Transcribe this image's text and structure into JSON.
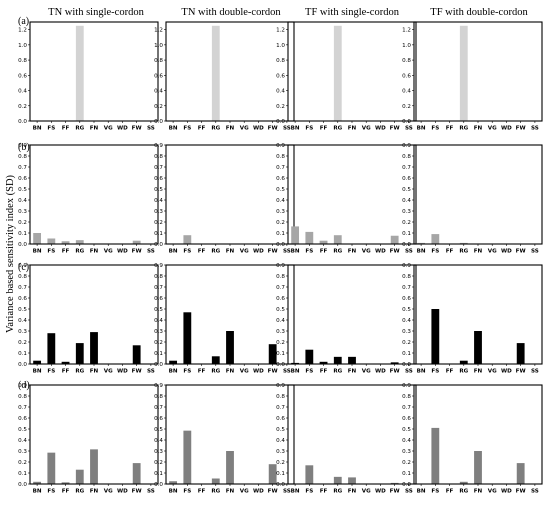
{
  "figure": {
    "ylabel": "Variance based sensitivity index (SD)",
    "columns": [
      "TN with single-cordon",
      "TN with double-cordon",
      "TF with single-cordon",
      "TF with double-cordon"
    ],
    "rows": [
      "(a)",
      "(b)",
      "(c)",
      "(d)"
    ],
    "row_colors": [
      "#d3d3d3",
      "#a6a6a6",
      "#000000",
      "#7f7f7f"
    ]
  },
  "chart_data": [
    {
      "type": "bar",
      "title": "TN with single-cordon",
      "panel": "(a)",
      "categories": [
        "BN",
        "FS",
        "FF",
        "RG",
        "FN",
        "VG",
        "WD",
        "FW",
        "SS"
      ],
      "values": [
        0,
        0,
        0,
        1.25,
        0,
        0,
        0,
        0,
        0
      ],
      "ylim": [
        0,
        1.3
      ],
      "yticks": [
        0.0,
        0.2,
        0.4,
        0.6,
        0.8,
        1.0,
        1.2
      ]
    },
    {
      "type": "bar",
      "title": "TN with double-cordon",
      "panel": "(a)",
      "categories": [
        "BN",
        "FS",
        "FF",
        "RG",
        "FN",
        "VG",
        "WD",
        "FW",
        "SS"
      ],
      "values": [
        0,
        0,
        0,
        1.25,
        0,
        0,
        0,
        0,
        0
      ],
      "ylim": [
        0,
        1.3
      ],
      "yticks": [
        0.0,
        0.2,
        0.4,
        0.6,
        0.8,
        1.0,
        1.2
      ]
    },
    {
      "type": "bar",
      "title": "TF with single-cordon",
      "panel": "(a)",
      "categories": [
        "BN",
        "FS",
        "FF",
        "RG",
        "FN",
        "VG",
        "WD",
        "FW",
        "SS"
      ],
      "values": [
        0,
        0,
        0,
        1.25,
        0,
        0,
        0,
        0,
        0
      ],
      "ylim": [
        0,
        1.3
      ],
      "yticks": [
        0.0,
        0.2,
        0.4,
        0.6,
        0.8,
        1.0,
        1.2
      ]
    },
    {
      "type": "bar",
      "title": "TF with double-cordon",
      "panel": "(a)",
      "categories": [
        "BN",
        "FS",
        "FF",
        "RG",
        "FN",
        "VG",
        "WD",
        "FW",
        "SS"
      ],
      "values": [
        0,
        0,
        0,
        1.25,
        0,
        0,
        0,
        0,
        0
      ],
      "ylim": [
        0,
        1.3
      ],
      "yticks": [
        0.0,
        0.2,
        0.4,
        0.6,
        0.8,
        1.0,
        1.2
      ]
    },
    {
      "type": "bar",
      "panel": "(b)",
      "categories": [
        "BN",
        "FS",
        "FF",
        "RG",
        "FN",
        "VG",
        "WD",
        "FW",
        "SS"
      ],
      "values": [
        0.1,
        0.05,
        0.025,
        0.035,
        0,
        0,
        0,
        0.03,
        0
      ],
      "ylim": [
        0,
        0.9
      ],
      "yticks": [
        0.0,
        0.1,
        0.2,
        0.3,
        0.4,
        0.5,
        0.6,
        0.7,
        0.8,
        0.9
      ]
    },
    {
      "type": "bar",
      "panel": "(b)",
      "categories": [
        "BN",
        "FS",
        "FF",
        "RG",
        "FN",
        "VG",
        "WD",
        "FW",
        "SS"
      ],
      "values": [
        0,
        0.08,
        0,
        0,
        0,
        0,
        0,
        0,
        0
      ],
      "ylim": [
        0,
        0.9
      ],
      "yticks": [
        0.0,
        0.1,
        0.2,
        0.3,
        0.4,
        0.5,
        0.6,
        0.7,
        0.8,
        0.9
      ]
    },
    {
      "type": "bar",
      "panel": "(b)",
      "categories": [
        "BN",
        "FS",
        "FF",
        "RG",
        "FN",
        "VG",
        "WD",
        "FW",
        "SS"
      ],
      "values": [
        0.16,
        0.11,
        0.03,
        0.08,
        0,
        0,
        0,
        0.075,
        0
      ],
      "ylim": [
        0,
        0.9
      ],
      "yticks": [
        0.0,
        0.1,
        0.2,
        0.3,
        0.4,
        0.5,
        0.6,
        0.7,
        0.8,
        0.9
      ]
    },
    {
      "type": "bar",
      "panel": "(b)",
      "categories": [
        "BN",
        "FS",
        "FF",
        "RG",
        "FN",
        "VG",
        "WD",
        "FW",
        "SS"
      ],
      "values": [
        0.01,
        0.09,
        0,
        0.01,
        0,
        0,
        0,
        0,
        0
      ],
      "ylim": [
        0,
        0.9
      ],
      "yticks": [
        0.0,
        0.1,
        0.2,
        0.3,
        0.4,
        0.5,
        0.6,
        0.7,
        0.8,
        0.9
      ]
    },
    {
      "type": "bar",
      "panel": "(c)",
      "categories": [
        "BN",
        "FS",
        "FF",
        "RG",
        "FN",
        "VG",
        "WD",
        "FW",
        "SS"
      ],
      "values": [
        0.03,
        0.28,
        0.02,
        0.19,
        0.29,
        0,
        0,
        0.17,
        0
      ],
      "ylim": [
        0,
        0.9
      ],
      "yticks": [
        0.0,
        0.1,
        0.2,
        0.3,
        0.4,
        0.5,
        0.6,
        0.7,
        0.8,
        0.9
      ]
    },
    {
      "type": "bar",
      "panel": "(c)",
      "categories": [
        "BN",
        "FS",
        "FF",
        "RG",
        "FN",
        "VG",
        "WD",
        "FW",
        "SS"
      ],
      "values": [
        0.03,
        0.47,
        0,
        0.07,
        0.3,
        0,
        0,
        0.18,
        0
      ],
      "ylim": [
        0,
        0.9
      ],
      "yticks": [
        0.0,
        0.1,
        0.2,
        0.3,
        0.4,
        0.5,
        0.6,
        0.7,
        0.8,
        0.9
      ]
    },
    {
      "type": "bar",
      "panel": "(c)",
      "categories": [
        "BN",
        "FS",
        "FF",
        "RG",
        "FN",
        "VG",
        "WD",
        "FW",
        "SS"
      ],
      "values": [
        0.01,
        0.13,
        0.02,
        0.065,
        0.065,
        0,
        0,
        0.015,
        0
      ],
      "ylim": [
        0,
        0.9
      ],
      "yticks": [
        0.0,
        0.1,
        0.2,
        0.3,
        0.4,
        0.5,
        0.6,
        0.7,
        0.8,
        0.9
      ]
    },
    {
      "type": "bar",
      "panel": "(c)",
      "categories": [
        "BN",
        "FS",
        "FF",
        "RG",
        "FN",
        "VG",
        "WD",
        "FW",
        "SS"
      ],
      "values": [
        0,
        0.5,
        0,
        0.03,
        0.3,
        0,
        0,
        0.19,
        0
      ],
      "ylim": [
        0,
        0.9
      ],
      "yticks": [
        0.0,
        0.1,
        0.2,
        0.3,
        0.4,
        0.5,
        0.6,
        0.7,
        0.8,
        0.9
      ]
    },
    {
      "type": "bar",
      "panel": "(d)",
      "categories": [
        "BN",
        "FS",
        "FF",
        "RG",
        "FN",
        "VG",
        "WD",
        "FW",
        "SS"
      ],
      "values": [
        0.02,
        0.285,
        0.015,
        0.13,
        0.315,
        0,
        0,
        0.19,
        0
      ],
      "ylim": [
        0,
        0.9
      ],
      "yticks": [
        0.0,
        0.1,
        0.2,
        0.3,
        0.4,
        0.5,
        0.6,
        0.7,
        0.8,
        0.9
      ]
    },
    {
      "type": "bar",
      "panel": "(d)",
      "categories": [
        "BN",
        "FS",
        "FF",
        "RG",
        "FN",
        "VG",
        "WD",
        "FW",
        "SS"
      ],
      "values": [
        0.025,
        0.485,
        0,
        0.05,
        0.3,
        0,
        0,
        0.18,
        0
      ],
      "ylim": [
        0,
        0.9
      ],
      "yticks": [
        0.0,
        0.1,
        0.2,
        0.3,
        0.4,
        0.5,
        0.6,
        0.7,
        0.8,
        0.9
      ]
    },
    {
      "type": "bar",
      "panel": "(d)",
      "categories": [
        "BN",
        "FS",
        "FF",
        "RG",
        "FN",
        "VG",
        "WD",
        "FW",
        "SS"
      ],
      "values": [
        0,
        0.17,
        0,
        0.065,
        0.06,
        0,
        0,
        0.01,
        0
      ],
      "ylim": [
        0,
        0.9
      ],
      "yticks": [
        0.0,
        0.1,
        0.2,
        0.3,
        0.4,
        0.5,
        0.6,
        0.7,
        0.8,
        0.9
      ]
    },
    {
      "type": "bar",
      "panel": "(d)",
      "categories": [
        "BN",
        "FS",
        "FF",
        "RG",
        "FN",
        "VG",
        "WD",
        "FW",
        "SS"
      ],
      "values": [
        0,
        0.51,
        0,
        0.02,
        0.3,
        0,
        0,
        0.19,
        0
      ],
      "ylim": [
        0,
        0.9
      ],
      "yticks": [
        0.0,
        0.1,
        0.2,
        0.3,
        0.4,
        0.5,
        0.6,
        0.7,
        0.8,
        0.9
      ]
    }
  ]
}
